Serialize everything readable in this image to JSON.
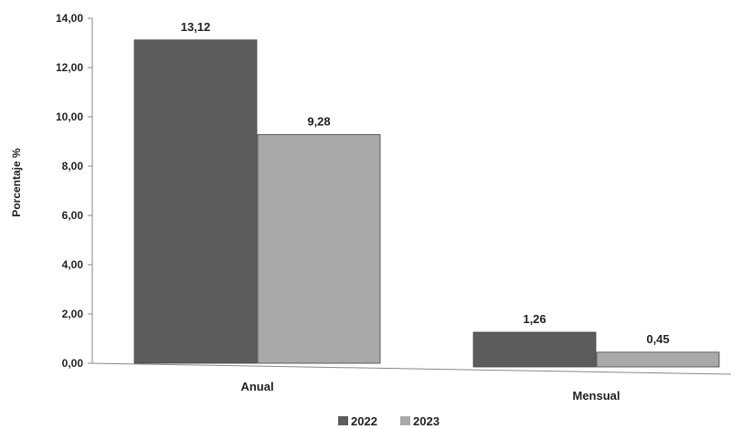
{
  "chart_data": {
    "type": "bar",
    "title": "",
    "xlabel": "",
    "ylabel": "Porcentaje %",
    "categories": [
      "Anual",
      "Mensual"
    ],
    "series": [
      {
        "name": "2022",
        "values": [
          13.12,
          1.26
        ],
        "labels": [
          "13,12",
          "1,26"
        ],
        "color": "#5c5c5c"
      },
      {
        "name": "2023",
        "values": [
          9.28,
          0.45
        ],
        "labels": [
          "9,28",
          "0,45"
        ],
        "color": "#a9a9a9"
      }
    ],
    "ylim": [
      0,
      14
    ],
    "yticks": [
      0,
      2,
      4,
      6,
      8,
      10,
      12,
      14
    ],
    "ytick_labels": [
      "0,00",
      "2,00",
      "4,00",
      "6,00",
      "8,00",
      "10,00",
      "12,00",
      "14,00"
    ],
    "grid": false,
    "legend_position": "bottom-center"
  }
}
